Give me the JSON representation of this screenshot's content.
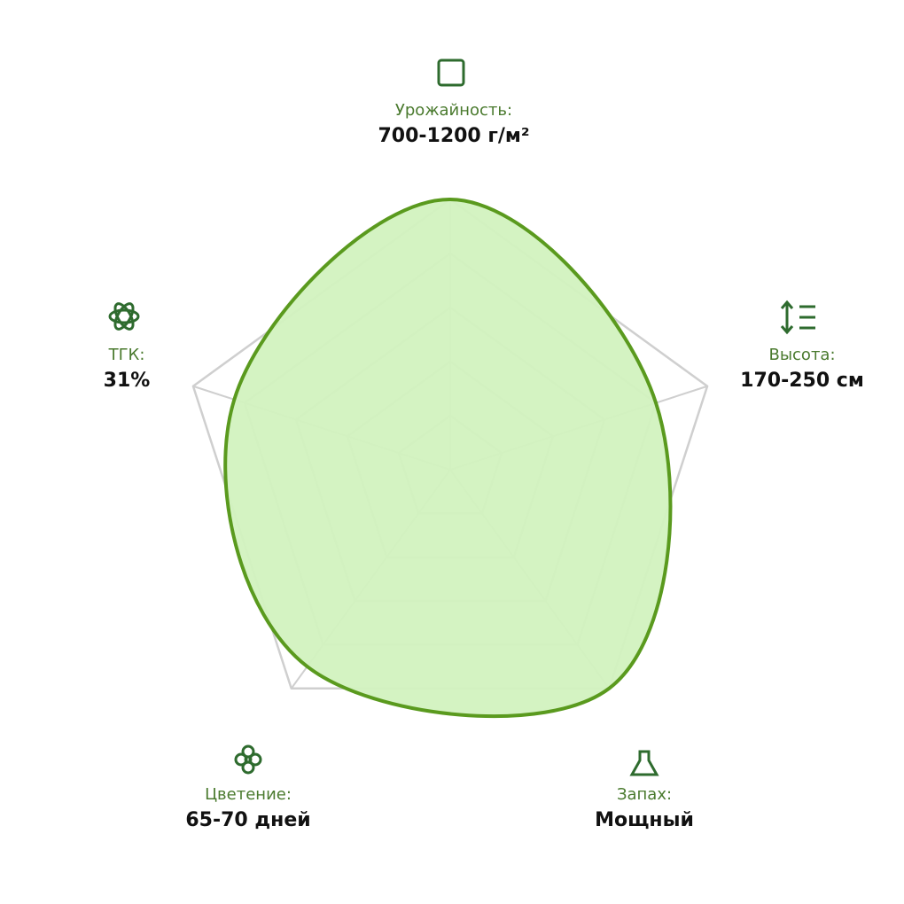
{
  "chart_data": {
    "type": "radar",
    "categories": [
      "Урожайность:",
      "Высота:",
      "Запах:",
      "Цветение:",
      "ТГК:"
    ],
    "descriptions": [
      "700-1200 г/м²",
      "170-250 см",
      "Мощный",
      "65-70 дней",
      "31%"
    ],
    "values": [
      5,
      4,
      5,
      4.5,
      4.2
    ],
    "ylim": [
      0,
      5
    ],
    "yticks": [
      1,
      2,
      3,
      4,
      5
    ],
    "grid": true,
    "color": "#5a9a1e",
    "fill": "#d2f2bf"
  }
}
